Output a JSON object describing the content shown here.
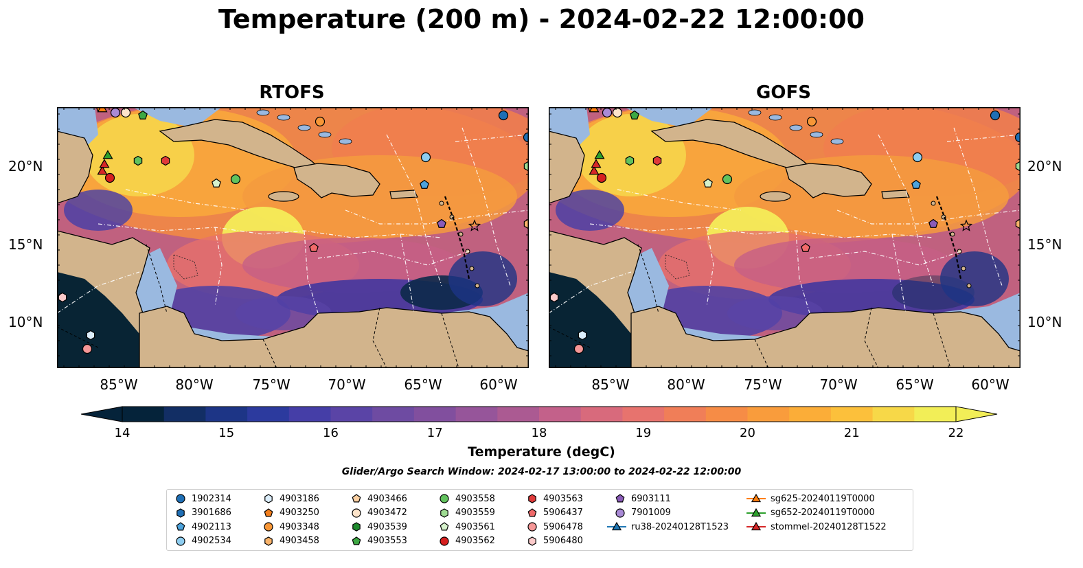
{
  "title": "Temperature (200 m) - 2024-02-22 12:00:00",
  "panels": [
    {
      "name": "RTOFS"
    },
    {
      "name": "GOFS"
    }
  ],
  "x_ticks": [
    "85°W",
    "80°W",
    "75°W",
    "70°W",
    "65°W",
    "60°W"
  ],
  "y_ticks": [
    "20°N",
    "15°N",
    "10°N"
  ],
  "colors": {
    "land": "#d2b48c",
    "shelf": "#9ab9e0",
    "warm": "#f4733f",
    "cool": "#3a2e8a"
  },
  "colorbar": {
    "label": "Temperature (degC)",
    "min": 14,
    "max": 22,
    "ticks": [
      "14",
      "15",
      "16",
      "17",
      "18",
      "19",
      "20",
      "21",
      "22"
    ],
    "colors": [
      "#05233a",
      "#122e64",
      "#1d3586",
      "#2c3a9e",
      "#453ea7",
      "#5a44a6",
      "#6e4ba2",
      "#814f9e",
      "#96559a",
      "#ab5a92",
      "#c3618a",
      "#d86a7c",
      "#e7736e",
      "#f07e58",
      "#f68c46",
      "#f99c3c",
      "#fbad38",
      "#fcc03b",
      "#f7d848",
      "#f2ee57"
    ]
  },
  "search_window": "Glider/Argo Search Window: 2024-02-17 13:00:00 to 2024-02-22 12:00:00",
  "legend": [
    {
      "label": "1902314",
      "shape": "circle",
      "color": "#1f6fb5"
    },
    {
      "label": "3901686",
      "shape": "hexagon",
      "color": "#1f6fb5"
    },
    {
      "label": "4902113",
      "shape": "pentagon",
      "color": "#4da3dc"
    },
    {
      "label": "4902534",
      "shape": "circle",
      "color": "#8ecdf0"
    },
    {
      "label": "4903186",
      "shape": "hexagon",
      "color": "#dceefb"
    },
    {
      "label": "4903250",
      "shape": "pentagon",
      "color": "#f27e1c"
    },
    {
      "label": "4903348",
      "shape": "circle",
      "color": "#f79636"
    },
    {
      "label": "4903458",
      "shape": "hexagon",
      "color": "#f9b36a"
    },
    {
      "label": "4903466",
      "shape": "pentagon",
      "color": "#fbd0a2"
    },
    {
      "label": "4903472",
      "shape": "circle",
      "color": "#fde4ca"
    },
    {
      "label": "4903539",
      "shape": "hexagon",
      "color": "#1f8a2e"
    },
    {
      "label": "4903553",
      "shape": "pentagon",
      "color": "#3da843"
    },
    {
      "label": "4903558",
      "shape": "circle",
      "color": "#62c25e"
    },
    {
      "label": "4903559",
      "shape": "hexagon",
      "color": "#9edb92"
    },
    {
      "label": "4903561",
      "shape": "pentagon",
      "color": "#d6f2cc"
    },
    {
      "label": "4903562",
      "shape": "circle",
      "color": "#d61f1f"
    },
    {
      "label": "4903563",
      "shape": "hexagon",
      "color": "#e03a3a"
    },
    {
      "label": "5906437",
      "shape": "pentagon",
      "color": "#f06a6a"
    },
    {
      "label": "5906478",
      "shape": "circle",
      "color": "#f59797"
    },
    {
      "label": "5906480",
      "shape": "hexagon",
      "color": "#fbcaca"
    },
    {
      "label": "6903111",
      "shape": "pentagon",
      "color": "#8a5bb8"
    },
    {
      "label": "7901009",
      "shape": "circle",
      "color": "#a98ad6"
    },
    {
      "label": "ru38-20240128T1523",
      "shape": "triangle-line",
      "color": "#1f77b4"
    },
    {
      "label": "sg625-20240119T0000",
      "shape": "triangle-line",
      "color": "#ff7f0e"
    },
    {
      "label": "sg652-20240119T0000",
      "shape": "triangle-line",
      "color": "#2ca02c"
    },
    {
      "label": "stommel-20240128T1522",
      "shape": "triangle-line",
      "color": "#d62728"
    }
  ]
}
